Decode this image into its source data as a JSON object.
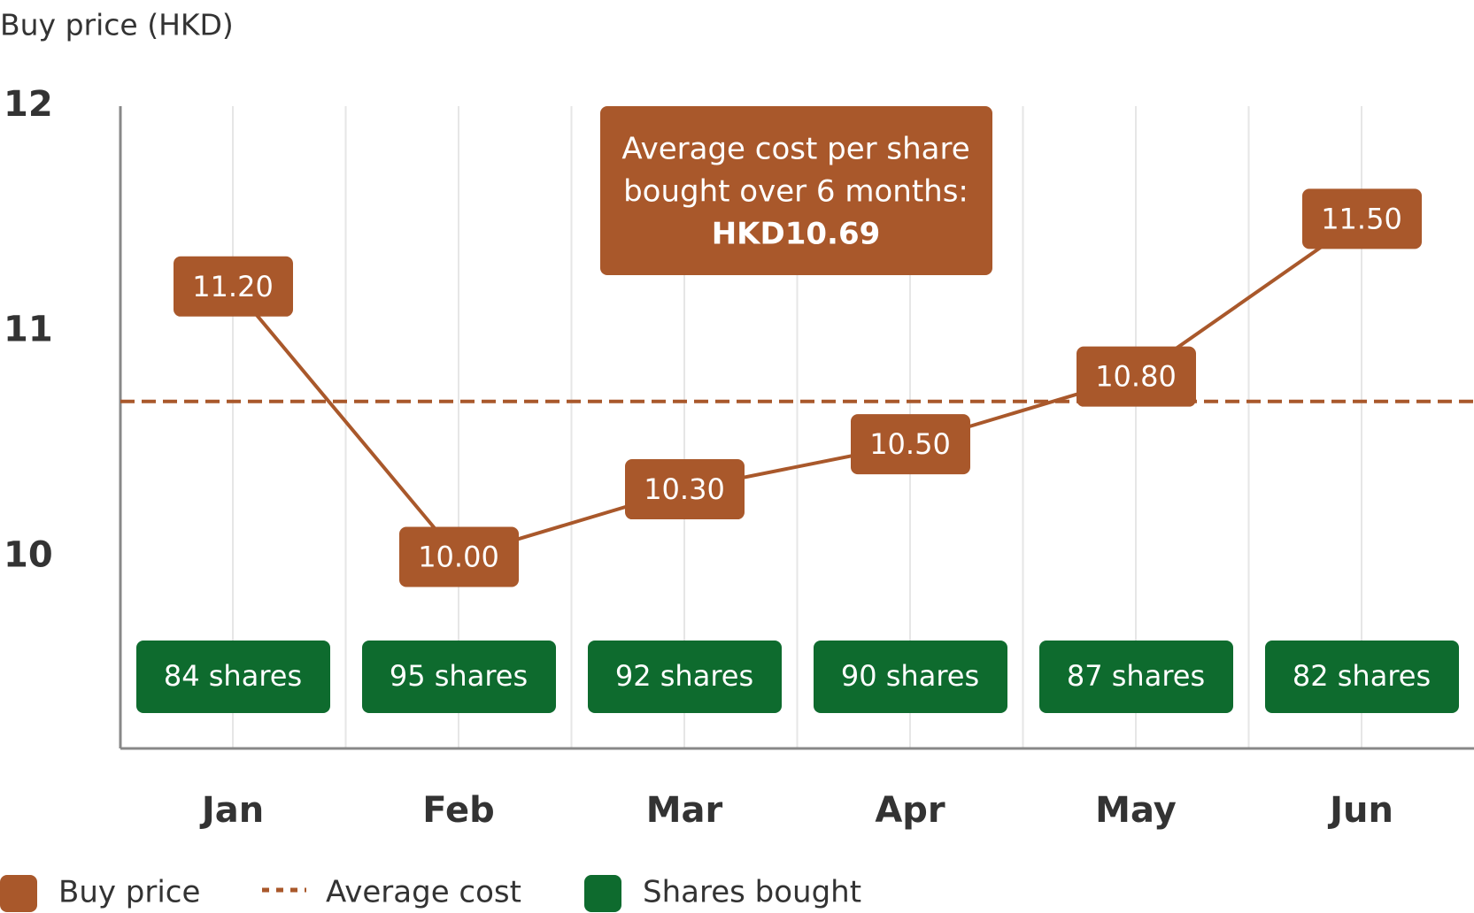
{
  "chart_data": {
    "type": "line",
    "y_label": "Buy price (HKD)",
    "categories": [
      "Jan",
      "Feb",
      "Mar",
      "Apr",
      "May",
      "Jun"
    ],
    "ylim": [
      9.15,
      12
    ],
    "yticks": [
      10,
      11,
      12
    ],
    "grid": true,
    "series": [
      {
        "name": "Buy price",
        "color": "#a9582b",
        "values": [
          11.2,
          10.0,
          10.3,
          10.5,
          10.8,
          11.5
        ],
        "value_labels": [
          "11.20",
          "10.00",
          "10.30",
          "10.50",
          "10.80",
          "11.50"
        ]
      },
      {
        "name": "Shares bought",
        "color": "#0e6b2e",
        "values": [
          84,
          95,
          92,
          90,
          87,
          82
        ],
        "value_labels": [
          "84 shares",
          "95 shares",
          "92 shares",
          "90 shares",
          "87 shares",
          "82 shares"
        ]
      }
    ],
    "average": {
      "name": "Average cost",
      "value": 10.69,
      "label": "HKD10.69",
      "color": "#a9582b"
    },
    "annotation": [
      "Average cost per share",
      "bought over 6 months:"
    ]
  }
}
